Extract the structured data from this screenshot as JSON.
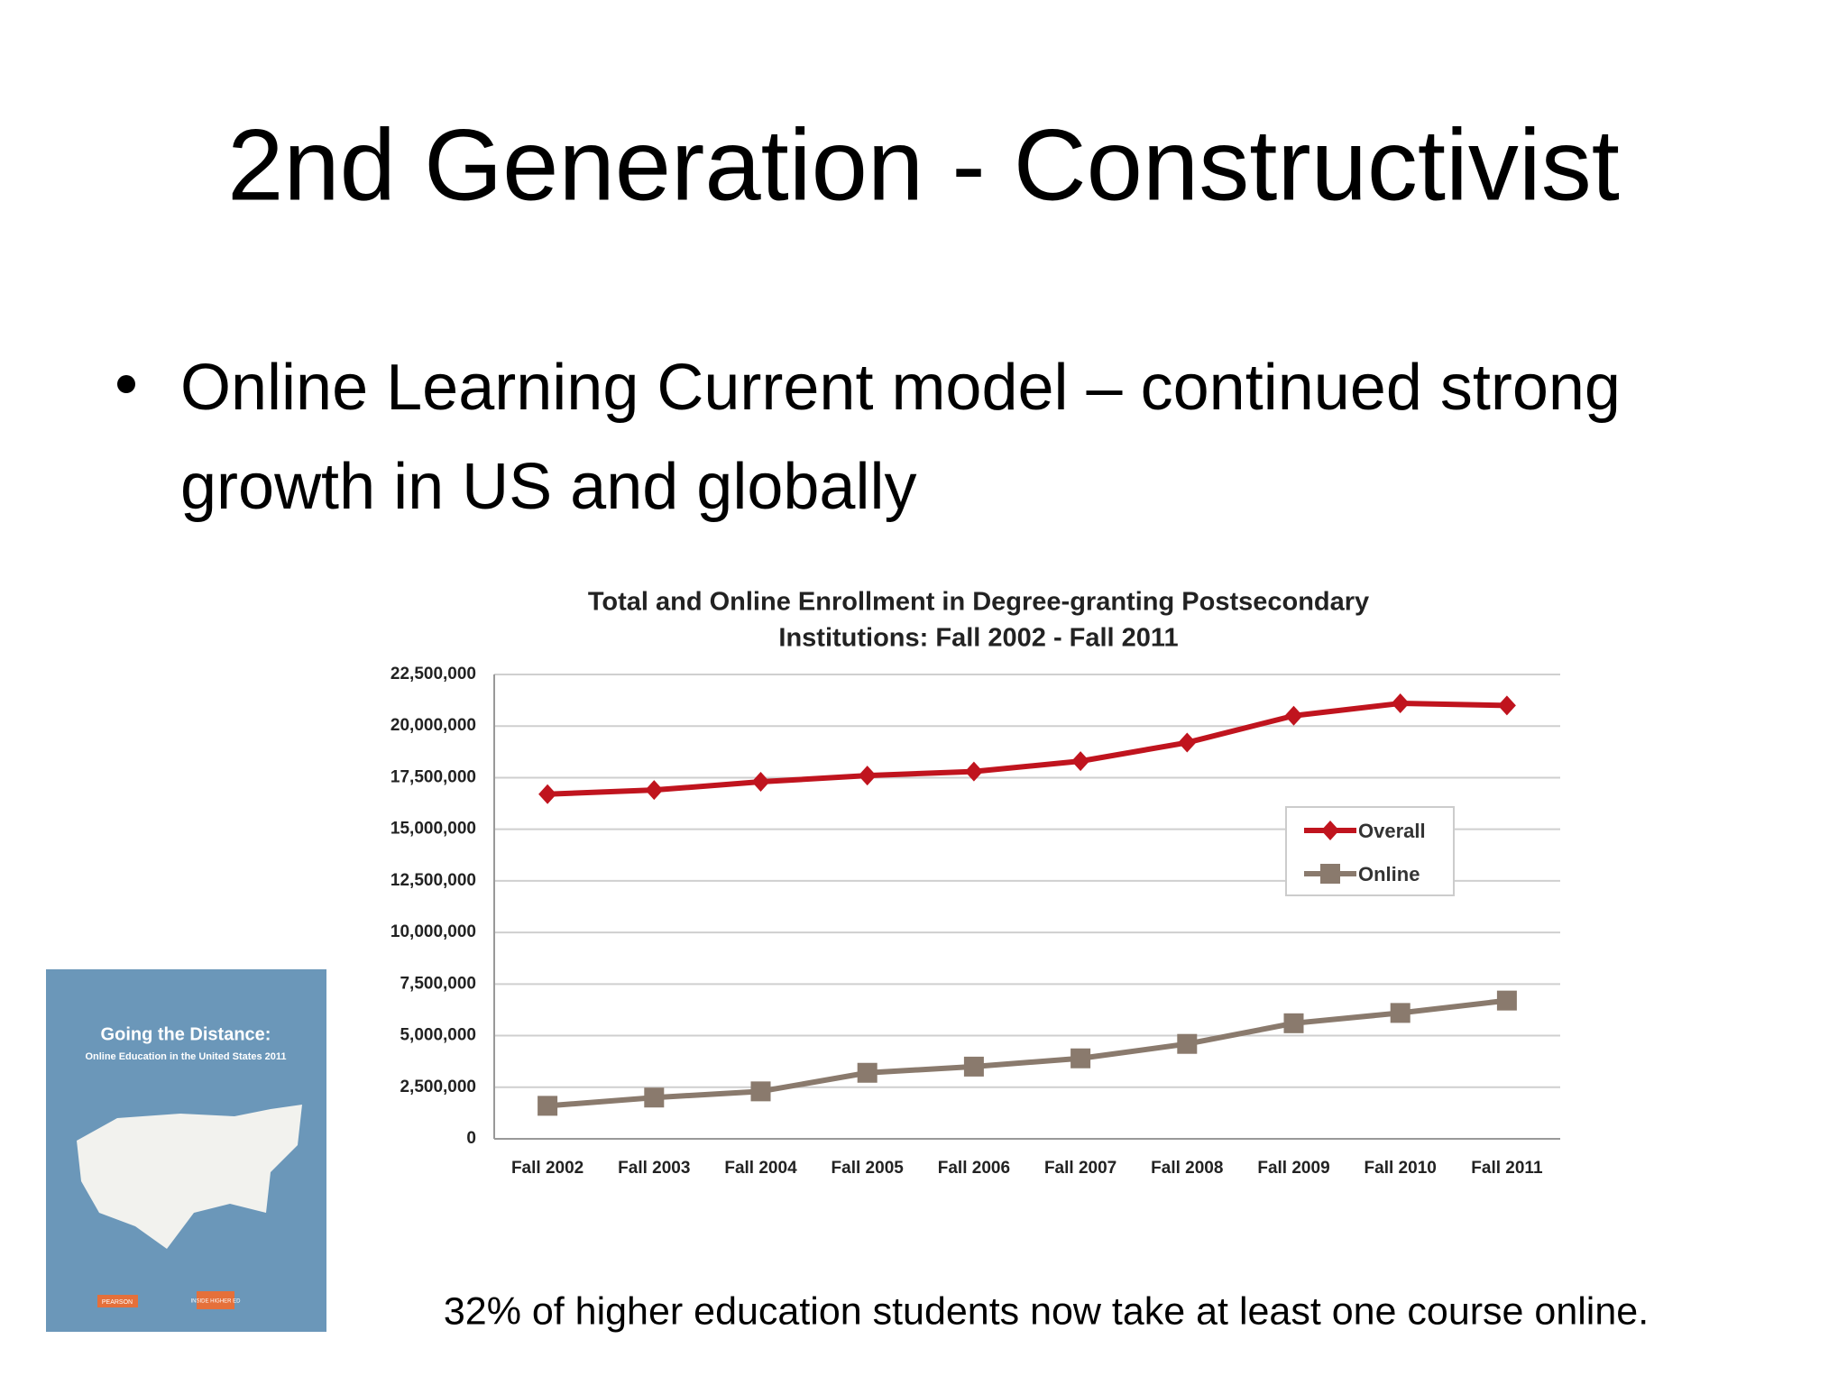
{
  "slide": {
    "title": "2nd Generation - Constructivist",
    "bullet": "Online Learning Current model – continued strong growth in US and globally",
    "caption": "32% of higher education students now take at least one course online.",
    "cover": {
      "title": "Going the Distance:",
      "subtitle": "Online Education in the United States 2011",
      "publisher": "PEARSON",
      "partner": "INSIDE HIGHER ED"
    }
  },
  "chart_data": {
    "type": "line",
    "title": [
      "Total and Online Enrollment in Degree-granting Postsecondary",
      "Institutions: Fall 2002 - Fall 2011"
    ],
    "categories": [
      "Fall 2002",
      "Fall 2003",
      "Fall 2004",
      "Fall 2005",
      "Fall 2006",
      "Fall 2007",
      "Fall 2008",
      "Fall 2009",
      "Fall 2010",
      "Fall 2011"
    ],
    "series": [
      {
        "name": "Overall",
        "color": "#c0141e",
        "marker": "diamond",
        "values": [
          16700000,
          16900000,
          17300000,
          17600000,
          17800000,
          18300000,
          19200000,
          20500000,
          21100000,
          21000000
        ]
      },
      {
        "name": "Online",
        "color": "#8a7a6d",
        "marker": "square",
        "values": [
          1600000,
          2000000,
          2300000,
          3200000,
          3500000,
          3900000,
          4600000,
          5600000,
          6100000,
          6700000
        ]
      }
    ],
    "ylim": [
      0,
      22500000
    ],
    "yticks": [
      0,
      {
        "value": 2500000,
        "label": "2,500,000"
      },
      {
        "value": 5000000,
        "label": "5,000,000"
      },
      {
        "value": 7500000,
        "label": "7,500,000"
      },
      {
        "value": 10000000,
        "label": "10,000,000"
      },
      {
        "value": 12500000,
        "label": "12,500,000"
      },
      {
        "value": 15000000,
        "label": "15,000,000"
      },
      {
        "value": 17500000,
        "label": "17,500,000"
      },
      {
        "value": 20000000,
        "label": "20,000,000"
      },
      {
        "value": 22500000,
        "label": "22,500,000"
      }
    ],
    "grid": true,
    "legend": "right"
  }
}
